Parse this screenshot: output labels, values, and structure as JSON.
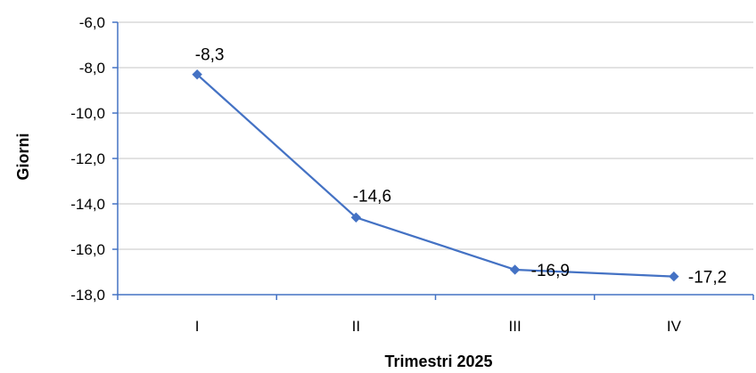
{
  "chart_data": {
    "type": "line",
    "categories": [
      "I",
      "II",
      "III",
      "IV"
    ],
    "series": [
      {
        "values": [
          -8.3,
          -14.6,
          -16.9,
          -17.2
        ],
        "data_labels": [
          "-8,3",
          "-14,6",
          "-16,9",
          "-17,2"
        ],
        "color": "#4472C4",
        "marker": "diamond"
      }
    ],
    "title": "",
    "xlabel": "Trimestri 2025",
    "ylabel": "Giorni",
    "ylim": [
      -18.0,
      -6.0
    ],
    "ytick_step": 2.0,
    "ytick_labels": [
      "-6,0",
      "-8,0",
      "-10,0",
      "-12,0",
      "-14,0",
      "-16,0",
      "-18,0"
    ],
    "grid": true,
    "legend": "none",
    "colors": {
      "grid": "#D9D9D9",
      "axis": "#4472C4",
      "line": "#4472C4",
      "text": "#000000"
    }
  }
}
